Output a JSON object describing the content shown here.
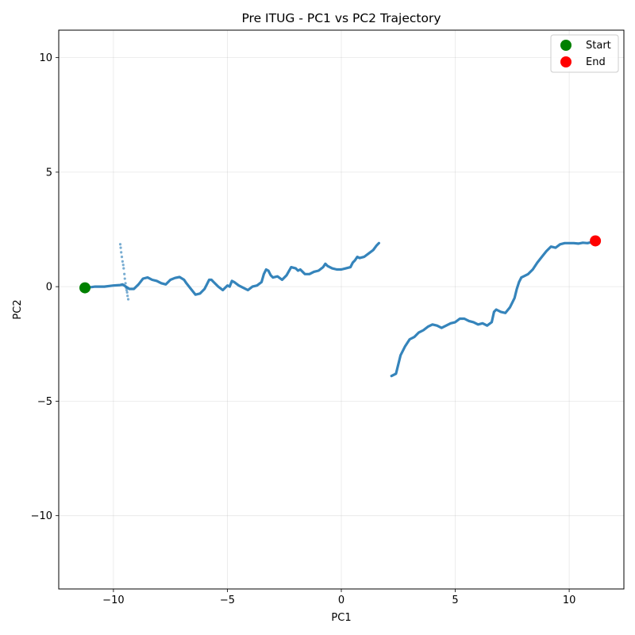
{
  "chart_data": {
    "type": "line",
    "title": "Pre ITUG - PC1 vs PC2 Trajectory",
    "xlabel": "PC1",
    "ylabel": "PC2",
    "xlim": [
      -12.4,
      12.4
    ],
    "ylim": [
      -13.2,
      11.2
    ],
    "xticks": [
      -10,
      -5,
      0,
      5,
      10
    ],
    "yticks": [
      -10,
      -5,
      0,
      5,
      10
    ],
    "xtick_labels": [
      "−10",
      "−5",
      "0",
      "5",
      "10"
    ],
    "ytick_labels": [
      "−10",
      "−5",
      "0",
      "5",
      "10"
    ],
    "grid": true,
    "legend_position": "top-right",
    "colors": {
      "trajectory": "#1f77b4",
      "start": "#008000",
      "end": "#ff0000"
    },
    "series": [
      {
        "style": "line",
        "x": [
          -11.2,
          -10.8,
          -10.4,
          -10.0,
          -9.7,
          -9.6,
          -9.3,
          -9.1,
          -8.9,
          -8.7,
          -8.5,
          -8.3,
          -8.1,
          -7.9,
          -7.7,
          -7.5,
          -7.3,
          -7.1,
          -6.9,
          -6.8,
          -6.6,
          -6.4,
          -6.2,
          -6.0,
          -5.9,
          -5.8,
          -5.7,
          -5.6,
          -5.4,
          -5.2,
          -5.0,
          -4.9,
          -4.8,
          -4.7,
          -4.5,
          -4.3,
          -4.1,
          -3.9,
          -3.7,
          -3.5,
          -3.4,
          -3.3,
          -3.2,
          -3.1,
          -3.0,
          -2.8,
          -2.6,
          -2.4,
          -2.2,
          -2.0,
          -1.9,
          -1.8,
          -1.6,
          -1.4,
          -1.2,
          -1.0,
          -0.8,
          -0.7,
          -0.6,
          -0.4,
          -0.2,
          0.0,
          0.2,
          0.4,
          0.5,
          0.6,
          0.7,
          0.8,
          1.0,
          1.2,
          1.4,
          1.55,
          1.65
        ],
        "y": [
          -0.05,
          0.0,
          0.0,
          0.05,
          0.07,
          0.1,
          -0.1,
          -0.1,
          0.1,
          0.35,
          0.4,
          0.3,
          0.25,
          0.15,
          0.1,
          0.3,
          0.38,
          0.42,
          0.3,
          0.15,
          -0.1,
          -0.35,
          -0.3,
          -0.1,
          0.1,
          0.3,
          0.3,
          0.2,
          0.0,
          -0.15,
          0.05,
          0.0,
          0.25,
          0.2,
          0.05,
          -0.05,
          -0.15,
          0.0,
          0.05,
          0.2,
          0.55,
          0.75,
          0.7,
          0.5,
          0.4,
          0.45,
          0.3,
          0.5,
          0.85,
          0.8,
          0.7,
          0.75,
          0.55,
          0.55,
          0.65,
          0.7,
          0.85,
          1.0,
          0.9,
          0.8,
          0.75,
          0.75,
          0.8,
          0.85,
          1.05,
          1.15,
          1.3,
          1.25,
          1.3,
          1.45,
          1.6,
          1.8,
          1.9
        ]
      },
      {
        "style": "scatter",
        "x": [
          -9.7,
          -9.68,
          -9.66,
          -9.63,
          -9.6,
          -9.57,
          -9.55,
          -9.52,
          -9.5,
          -9.47,
          -9.44,
          -9.42,
          -9.4,
          -9.38,
          -9.35
        ],
        "y": [
          1.85,
          1.7,
          1.5,
          1.3,
          1.1,
          0.95,
          0.8,
          0.55,
          0.35,
          0.15,
          -0.05,
          -0.15,
          -0.25,
          -0.4,
          -0.55
        ]
      },
      {
        "style": "line",
        "x": [
          2.2,
          2.4,
          2.6,
          2.8,
          3.0,
          3.2,
          3.4,
          3.6,
          3.8,
          4.0,
          4.2,
          4.4,
          4.6,
          4.8,
          5.0,
          5.2,
          5.4,
          5.6,
          5.8,
          6.0,
          6.2,
          6.4,
          6.6,
          6.7,
          6.8,
          7.0,
          7.2,
          7.4,
          7.6,
          7.7,
          7.8,
          7.9,
          8.0,
          8.2,
          8.4,
          8.6,
          8.8,
          9.0,
          9.2,
          9.4,
          9.6,
          9.8,
          10.0,
          10.2,
          10.4,
          10.6,
          10.8,
          11.0,
          11.15
        ],
        "y": [
          -3.9,
          -3.8,
          -3.0,
          -2.6,
          -2.3,
          -2.2,
          -2.0,
          -1.9,
          -1.75,
          -1.65,
          -1.7,
          -1.8,
          -1.7,
          -1.6,
          -1.55,
          -1.4,
          -1.4,
          -1.5,
          -1.55,
          -1.65,
          -1.6,
          -1.7,
          -1.55,
          -1.1,
          -1.0,
          -1.1,
          -1.15,
          -0.9,
          -0.5,
          -0.1,
          0.2,
          0.4,
          0.45,
          0.55,
          0.75,
          1.05,
          1.3,
          1.55,
          1.75,
          1.7,
          1.85,
          1.9,
          1.9,
          1.9,
          1.88,
          1.92,
          1.9,
          1.95,
          2.0
        ]
      }
    ],
    "markers": [
      {
        "name": "Start",
        "x": -11.25,
        "y": -0.05,
        "color": "#008000"
      },
      {
        "name": "End",
        "x": 11.15,
        "y": 2.0,
        "color": "#ff0000"
      }
    ]
  }
}
